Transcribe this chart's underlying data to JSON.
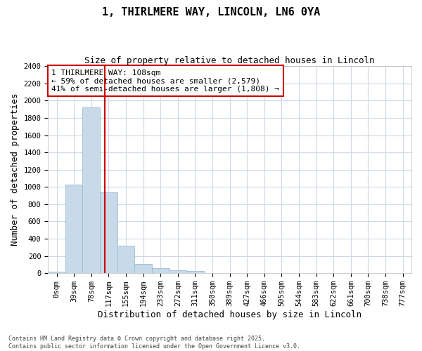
{
  "title": "1, THIRLMERE WAY, LINCOLN, LN6 0YA",
  "subtitle": "Size of property relative to detached houses in Lincoln",
  "xlabel": "Distribution of detached houses by size in Lincoln",
  "ylabel": "Number of detached properties",
  "bar_color": "#c8daea",
  "bar_edge_color": "#9bbcd4",
  "categories": [
    "0sqm",
    "39sqm",
    "78sqm",
    "117sqm",
    "155sqm",
    "194sqm",
    "233sqm",
    "272sqm",
    "311sqm",
    "350sqm",
    "389sqm",
    "427sqm",
    "466sqm",
    "505sqm",
    "544sqm",
    "583sqm",
    "622sqm",
    "661sqm",
    "700sqm",
    "738sqm",
    "777sqm"
  ],
  "values": [
    20,
    1030,
    1920,
    940,
    320,
    105,
    55,
    35,
    25,
    5,
    2,
    0,
    0,
    0,
    0,
    0,
    0,
    0,
    0,
    0,
    0
  ],
  "vline_x": 2.77,
  "vline_color": "#cc0000",
  "ylim": [
    0,
    2400
  ],
  "yticks": [
    0,
    200,
    400,
    600,
    800,
    1000,
    1200,
    1400,
    1600,
    1800,
    2000,
    2200,
    2400
  ],
  "annotation_text": "1 THIRLMERE WAY: 108sqm\n← 59% of detached houses are smaller (2,579)\n41% of semi-detached houses are larger (1,808) →",
  "annotation_box_color": "#cc0000",
  "footer1": "Contains HM Land Registry data © Crown copyright and database right 2025.",
  "footer2": "Contains public sector information licensed under the Open Government Licence v3.0.",
  "background_color": "#ffffff",
  "plot_bg_color": "#ffffff",
  "grid_color": "#d0d8e4",
  "title_fontsize": 11,
  "subtitle_fontsize": 9,
  "tick_fontsize": 7.5,
  "label_fontsize": 9,
  "annotation_fontsize": 8
}
